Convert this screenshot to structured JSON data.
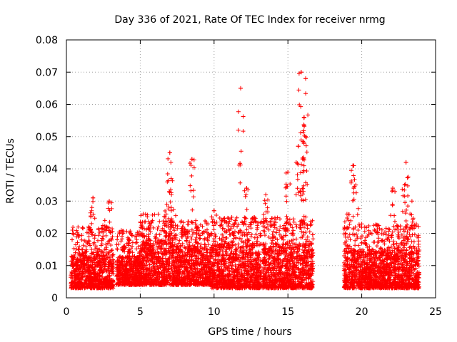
{
  "chart_data": {
    "type": "scatter",
    "title": "Day 336 of 2021, Rate Of TEC Index for receiver nrmg",
    "xlabel": "GPS time / hours",
    "ylabel": "ROTI / TECUs",
    "xlim": [
      0,
      25
    ],
    "ylim": [
      0,
      0.08
    ],
    "grid": true,
    "marker": "+",
    "series": [
      {
        "name": "ROTI",
        "color": "#ff0000",
        "clusters": [
          {
            "x": [
              0.3,
              3.2
            ],
            "base": [
              0.003,
              0.014
            ],
            "spikes": [
              [
                1.8,
                0.031
              ],
              [
                2.9,
                0.03
              ],
              [
                1.5,
                0.022
              ],
              [
                2.6,
                0.024
              ]
            ]
          },
          {
            "x": [
              3.4,
              5.0
            ],
            "base": [
              0.004,
              0.013
            ],
            "spikes": [
              [
                4.2,
                0.018
              ],
              [
                3.9,
                0.016
              ]
            ]
          },
          {
            "x": [
              5.0,
              7.4
            ],
            "base": [
              0.004,
              0.018
            ],
            "spikes": [
              [
                5.2,
                0.026
              ],
              [
                7.0,
                0.045
              ],
              [
                7.1,
                0.037
              ],
              [
                6.8,
                0.029
              ]
            ]
          },
          {
            "x": [
              7.4,
              9.8
            ],
            "base": [
              0.004,
              0.016
            ],
            "spikes": [
              [
                8.5,
                0.043
              ],
              [
                8.9,
                0.021
              ],
              [
                7.9,
                0.022
              ]
            ]
          },
          {
            "x": [
              9.8,
              13.2
            ],
            "base": [
              0.003,
              0.017
            ],
            "spikes": [
              [
                10.0,
                0.027
              ],
              [
                11.8,
                0.065
              ],
              [
                12.2,
                0.034
              ],
              [
                11.2,
                0.025
              ]
            ]
          },
          {
            "x": [
              13.3,
              16.7
            ],
            "base": [
              0.003,
              0.017
            ],
            "spikes": [
              [
                15.0,
                0.039
              ],
              [
                15.7,
                0.047
              ],
              [
                15.9,
                0.07
              ],
              [
                16.2,
                0.068
              ],
              [
                16.1,
                0.056
              ],
              [
                16.2,
                0.05
              ],
              [
                16.0,
                0.043
              ],
              [
                13.5,
                0.032
              ]
            ]
          },
          {
            "x": [
              18.8,
              23.9
            ],
            "base": [
              0.003,
              0.015
            ],
            "spikes": [
              [
                19.4,
                0.041
              ],
              [
                19.6,
                0.035
              ],
              [
                19.0,
                0.026
              ],
              [
                22.1,
                0.034
              ],
              [
                23.0,
                0.042
              ],
              [
                22.9,
                0.035
              ],
              [
                23.4,
                0.03
              ]
            ]
          }
        ],
        "x": [
          0.5,
          1.8,
          2.9,
          5.2,
          7.0,
          8.5,
          10.0,
          11.8,
          12.2,
          15.0,
          15.7,
          15.9,
          16.2,
          16.1,
          19.4,
          22.1,
          23.0
        ],
        "y": [
          0.009,
          0.031,
          0.03,
          0.026,
          0.045,
          0.043,
          0.027,
          0.065,
          0.034,
          0.039,
          0.047,
          0.07,
          0.068,
          0.056,
          0.041,
          0.034,
          0.042
        ]
      }
    ]
  }
}
